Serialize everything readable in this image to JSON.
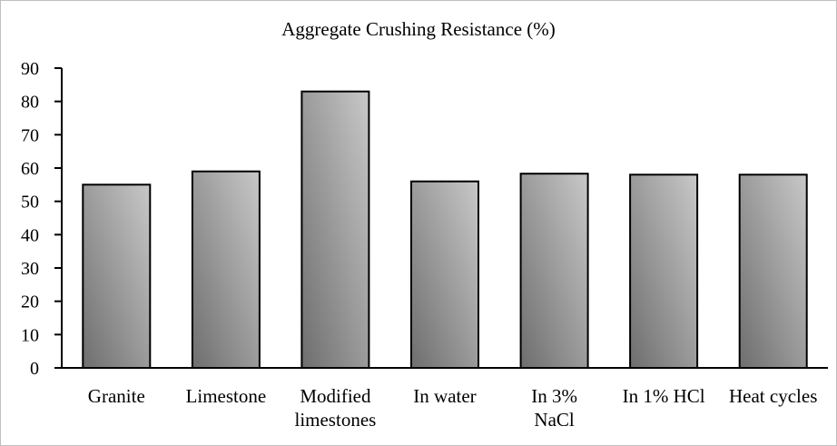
{
  "chart_data": {
    "type": "bar",
    "title": "Aggregate Crushing Resistance (%)",
    "xlabel": "",
    "ylabel": "",
    "categories": [
      [
        "Granite"
      ],
      [
        "Limestone"
      ],
      [
        "Modified",
        "limestones"
      ],
      [
        "In water"
      ],
      [
        "In 3%",
        "NaCl"
      ],
      [
        "In 1% HCl"
      ],
      [
        "Heat cycles"
      ]
    ],
    "values": [
      55,
      59,
      83,
      56,
      58.3,
      58,
      58
    ],
    "ylim": [
      0,
      90
    ],
    "yticks": [
      0,
      10,
      20,
      30,
      40,
      50,
      60,
      70,
      80,
      90
    ],
    "grid": false,
    "legend": "none",
    "bar_fill_light": "#c8c8c8",
    "bar_fill_dark": "#6e6e6e",
    "bar_stroke": "#000000"
  }
}
